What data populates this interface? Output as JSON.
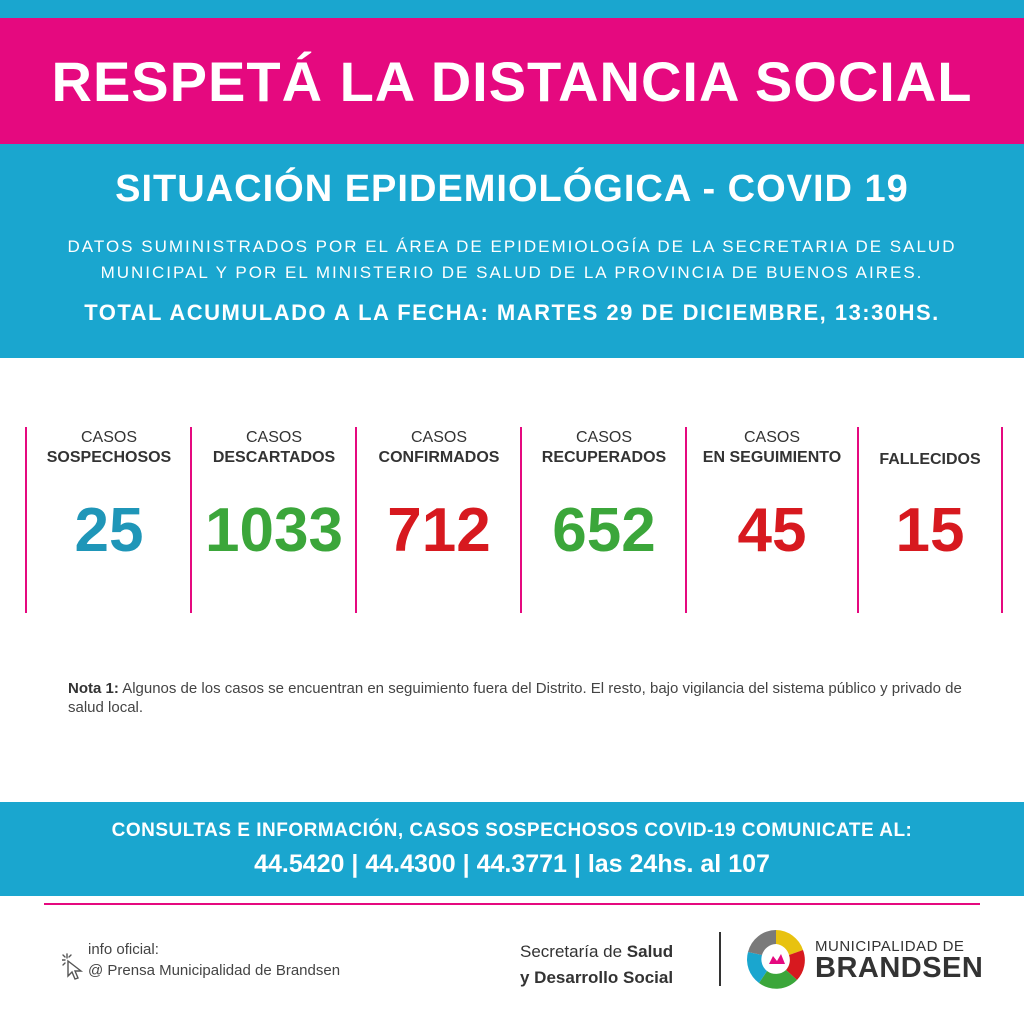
{
  "banner": {
    "title": "RESPETÁ LA DISTANCIA SOCIAL"
  },
  "header": {
    "title": "SITUACIÓN EPIDEMIOLÓGICA - COVID 19",
    "source_line1": "DATOS SUMINISTRADOS POR EL ÁREA DE EPIDEMIOLOGÍA DE LA SECRETARIA DE SALUD",
    "source_line2": "MUNICIPAL Y POR EL MINISTERIO DE SALUD DE LA PROVINCIA DE BUENOS AIRES.",
    "date": "TOTAL ACUMULADO A LA FECHA: MARTES 29 DE DICIEMBRE, 13:30HS."
  },
  "stats": [
    {
      "l1": "CASOS",
      "l2": "SOSPECHOSOS",
      "value": "25",
      "color": "#1f96b8"
    },
    {
      "l1": "CASOS",
      "l2": "DESCARTADOS",
      "value": "1033",
      "color": "#3ba63a"
    },
    {
      "l1": "CASOS",
      "l2": "CONFIRMADOS",
      "value": "712",
      "color": "#d7191f"
    },
    {
      "l1": "CASOS",
      "l2": "RECUPERADOS",
      "value": "652",
      "color": "#3ba63a"
    },
    {
      "l1": "CASOS",
      "l2": "EN SEGUIMIENTO",
      "value": "45",
      "color": "#d7191f"
    },
    {
      "l1": "",
      "l2": "FALLECIDOS",
      "value": "15",
      "color": "#d7191f"
    }
  ],
  "note": {
    "label": "Nota 1:",
    "text": "Algunos de los casos se encuentran en seguimiento fuera del Distrito. El resto, bajo vigilancia del sistema público y privado de salud local."
  },
  "contact": {
    "line1": "CONSULTAS E INFORMACIÓN, CASOS SOSPECHOSOS COVID-19 COMUNICATE AL:",
    "line2": "44.5420 | 44.4300 | 44.3771 | las 24hs. al 107"
  },
  "footer": {
    "info_label": "info oficial:",
    "info_handle": "@ Prensa Municipalidad de Brandsen",
    "secretaria_prefix": "Secretaría de",
    "secretaria_bold1": "Salud",
    "secretaria_bold2": "y Desarrollo Social",
    "muni_top": "MUNICIPALIDAD DE",
    "muni_bottom": "BRANDSEN",
    "cursor_icon": "cursor-click-icon",
    "logo_icon": "brandsen-logo-icon"
  },
  "colors": {
    "pink": "#e5097f",
    "blue": "#1aa6cf"
  }
}
